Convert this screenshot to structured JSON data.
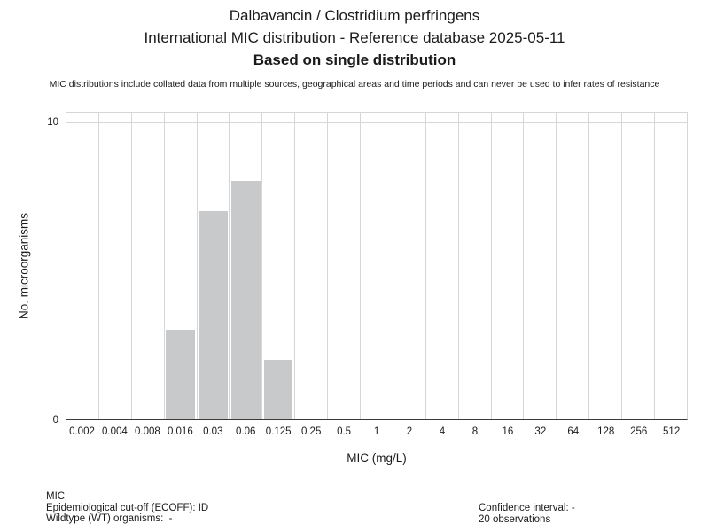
{
  "title": {
    "line1": "Dalbavancin / Clostridium perfringens",
    "line2": "International MIC distribution - Reference database 2025-05-11",
    "line3": "Based on single distribution"
  },
  "disclaimer": "MIC distributions include collated data from multiple sources, geographical areas and time periods and can never be used to infer rates of resistance",
  "chart_data": {
    "type": "bar",
    "title": "Dalbavancin / Clostridium perfringens — International MIC distribution",
    "xlabel": "MIC (mg/L)",
    "ylabel": "No. microorganisms",
    "categories": [
      "0.002",
      "0.004",
      "0.008",
      "0.016",
      "0.03",
      "0.06",
      "0.125",
      "0.25",
      "0.5",
      "1",
      "2",
      "4",
      "8",
      "16",
      "32",
      "64",
      "128",
      "256",
      "512"
    ],
    "values": [
      0,
      0,
      0,
      3,
      7,
      8,
      2,
      0,
      0,
      0,
      0,
      0,
      0,
      0,
      0,
      0,
      0,
      0,
      0
    ],
    "total_observations": 20,
    "ylim": [
      0,
      10.4
    ],
    "yticks": [
      0,
      10
    ],
    "grid": "vertical lines at category boundaries, horizontal line at y=10",
    "legend": "none",
    "bar_color": "#c8c9ca",
    "gridline_color": "#d6d6d6",
    "axis_color": "#3a3a3a"
  },
  "footer": {
    "left": [
      "MIC",
      "Epidemiological cut-off (ECOFF): ID",
      "Wildtype (WT) organisms:  -"
    ],
    "right": [
      "Confidence interval: -",
      "20 observations"
    ]
  }
}
